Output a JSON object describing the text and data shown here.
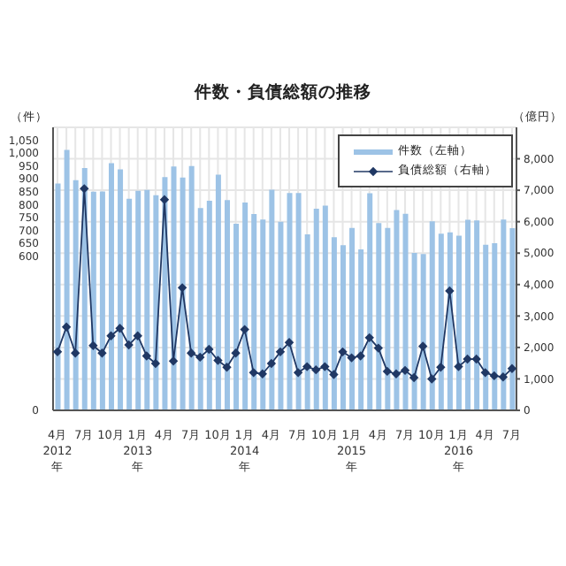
{
  "chart_data": {
    "type": "bar",
    "title": "件数・負債総額の推移",
    "ylabel": "（件）",
    "y2label": "（億円）",
    "categories": [
      "4月\n2012\n年",
      null,
      null,
      "7月",
      null,
      null,
      "10月",
      null,
      null,
      "1月\n2013\n年",
      null,
      null,
      "4月",
      null,
      null,
      "7月",
      null,
      null,
      "10月",
      null,
      null,
      "1月\n2014\n年",
      null,
      null,
      "4月",
      null,
      null,
      "7月",
      null,
      null,
      "10月",
      null,
      null,
      "1月\n2015\n年",
      null,
      null,
      "4月",
      null,
      null,
      "7月",
      null,
      null,
      "10月",
      null,
      null,
      "1月\n2016\n年",
      null,
      null,
      "4月",
      null,
      null,
      "7月"
    ],
    "series": [
      {
        "name": "件数（左軸）",
        "color": "#9dc3e6",
        "values": [
          882,
          1012,
          895,
          942,
          850,
          851,
          961,
          937,
          822,
          853,
          857,
          836,
          907,
          948,
          905,
          950,
          786,
          815,
          916,
          817,
          725,
          808,
          763,
          742,
          858,
          733,
          845,
          845,
          684,
          784,
          796,
          673,
          642,
          709,
          626,
          844,
          728,
          709,
          779,
          764,
          612,
          608,
          735,
          687,
          692,
          679,
          741,
          738,
          644,
          650,
          742,
          708
        ]
      },
      {
        "name": "負債総額（右軸）",
        "type": "line",
        "axis": "y2",
        "color": "#203864",
        "marker": "diamond",
        "values": [
          1860,
          2650,
          1820,
          7050,
          2060,
          1820,
          2370,
          2610,
          2080,
          2370,
          1730,
          1490,
          6700,
          1570,
          3900,
          1820,
          1690,
          1940,
          1590,
          1370,
          1820,
          2570,
          1200,
          1160,
          1490,
          1860,
          2160,
          1200,
          1390,
          1290,
          1390,
          1140,
          1860,
          1670,
          1730,
          2310,
          1980,
          1240,
          1160,
          1270,
          1040,
          2040,
          1000,
          1370,
          3800,
          1390,
          1630,
          1630,
          1200,
          1100,
          1060,
          1330
        ]
      }
    ],
    "ylim": [
      0,
      1100
    ],
    "yticks": [
      0,
      600,
      650,
      700,
      750,
      800,
      850,
      900,
      950,
      {
        "value": 1000,
        "label": "1,000"
      },
      {
        "value": 1050,
        "label": "1,050"
      }
    ],
    "y2lim": [
      0,
      9000
    ],
    "y2ticks": [
      0,
      {
        "value": 1000,
        "label": "1,000"
      },
      {
        "value": 2000,
        "label": "2,000"
      },
      {
        "value": 3000,
        "label": "3,000"
      },
      {
        "value": 4000,
        "label": "4,000"
      },
      {
        "value": 5000,
        "label": "5,000"
      },
      {
        "value": 6000,
        "label": "6,000"
      },
      {
        "value": 7000,
        "label": "7,000"
      },
      {
        "value": 8000,
        "label": "8,000"
      }
    ],
    "grid": true,
    "legend": "top right"
  }
}
